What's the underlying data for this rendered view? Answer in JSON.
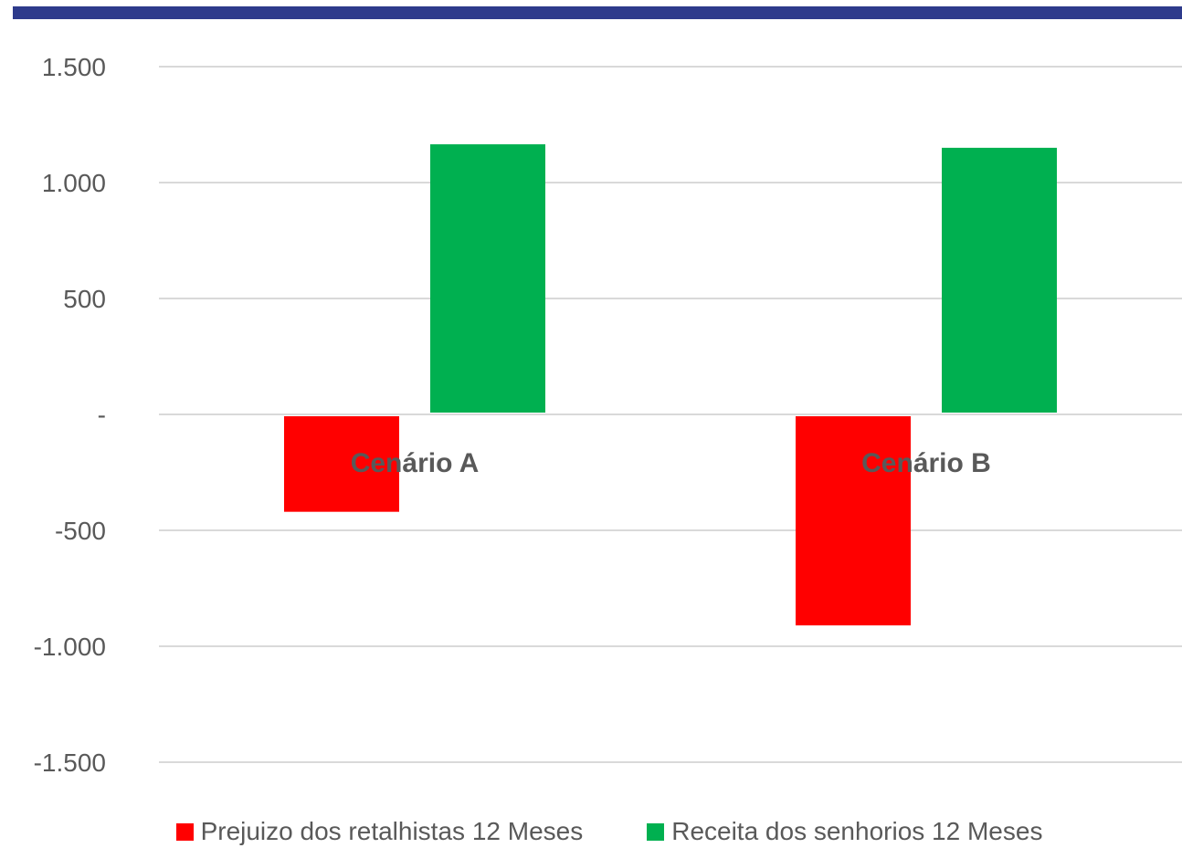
{
  "chart_data": {
    "type": "bar",
    "categories": [
      "Cenário A",
      "Cenário B"
    ],
    "series": [
      {
        "name": "Prejuizo dos retalhistas 12 Meses",
        "color": "#FF0000",
        "values": [
          -420,
          -910
        ]
      },
      {
        "name": "Receita dos senhorios 12 Meses",
        "color": "#00B050",
        "values": [
          1165,
          1150
        ]
      }
    ],
    "ylim": [
      -1500,
      1500
    ],
    "yticks": [
      1500,
      1000,
      500,
      0,
      -500,
      -1000,
      -1500
    ],
    "ytick_labels": [
      "1.500",
      "1.000",
      "500",
      "-",
      "-500",
      "-1.000",
      "-1.500"
    ],
    "grid": true,
    "legend": "bottom",
    "title": "",
    "xlabel": "",
    "ylabel": ""
  },
  "colors": {
    "top_band": "#2E3B8C",
    "gridline": "#D9D9D9",
    "text": "#595959"
  }
}
